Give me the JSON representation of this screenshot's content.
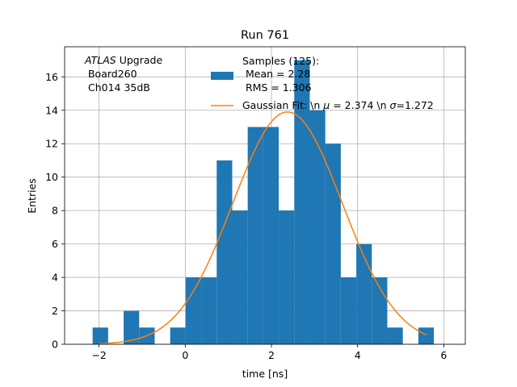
{
  "chart_data": {
    "type": "bar",
    "title": "Run 761",
    "xlabel": "time [ns]",
    "ylabel": "Entries",
    "xlim": [
      -2.8,
      6.5
    ],
    "ylim": [
      0,
      17.8
    ],
    "xticks": [
      -2,
      0,
      2,
      4,
      6
    ],
    "yticks": [
      0,
      2,
      4,
      6,
      8,
      10,
      12,
      14,
      16
    ],
    "grid": true,
    "bin_width": 0.36,
    "bins": [
      {
        "x0": -2.15,
        "value": 1
      },
      {
        "x0": -1.43,
        "value": 2
      },
      {
        "x0": -1.07,
        "value": 1
      },
      {
        "x0": -0.35,
        "value": 1
      },
      {
        "x0": 0.01,
        "value": 4
      },
      {
        "x0": 0.37,
        "value": 4
      },
      {
        "x0": 0.73,
        "value": 11
      },
      {
        "x0": 1.09,
        "value": 8
      },
      {
        "x0": 1.45,
        "value": 13
      },
      {
        "x0": 1.81,
        "value": 13
      },
      {
        "x0": 2.17,
        "value": 8
      },
      {
        "x0": 2.53,
        "value": 17
      },
      {
        "x0": 2.89,
        "value": 14
      },
      {
        "x0": 3.25,
        "value": 12
      },
      {
        "x0": 3.61,
        "value": 4
      },
      {
        "x0": 3.97,
        "value": 6
      },
      {
        "x0": 4.33,
        "value": 4
      },
      {
        "x0": 4.69,
        "value": 1
      },
      {
        "x0": 5.41,
        "value": 1
      }
    ],
    "histogram_series": {
      "name": "Samples (125):",
      "legend_lines": [
        "Samples (125):",
        " Mean = 2.28",
        " RMS = 1.306"
      ],
      "color": "#1f77b4"
    },
    "fit_series": {
      "name": "Gaussian Fit: \\n $\\mu$ = 2.374 \\n $\\sigma$=1.272",
      "legend_prefix": "Gaussian Fit: \\n ",
      "legend_mu": "μ",
      "legend_mid": " = 2.374 \\n ",
      "legend_sigma": "σ",
      "legend_suffix": "=1.272",
      "mu": 2.374,
      "sigma": 1.272,
      "amplitude": 13.9,
      "x_range": [
        -2.0,
        5.6
      ],
      "color": "#ff7f0e"
    },
    "annotation": {
      "italic": "ATLAS",
      "rest": " Upgrade",
      "line2": " Board260",
      "line3": " Ch014 35dB"
    },
    "legend_position": "upper-center"
  }
}
